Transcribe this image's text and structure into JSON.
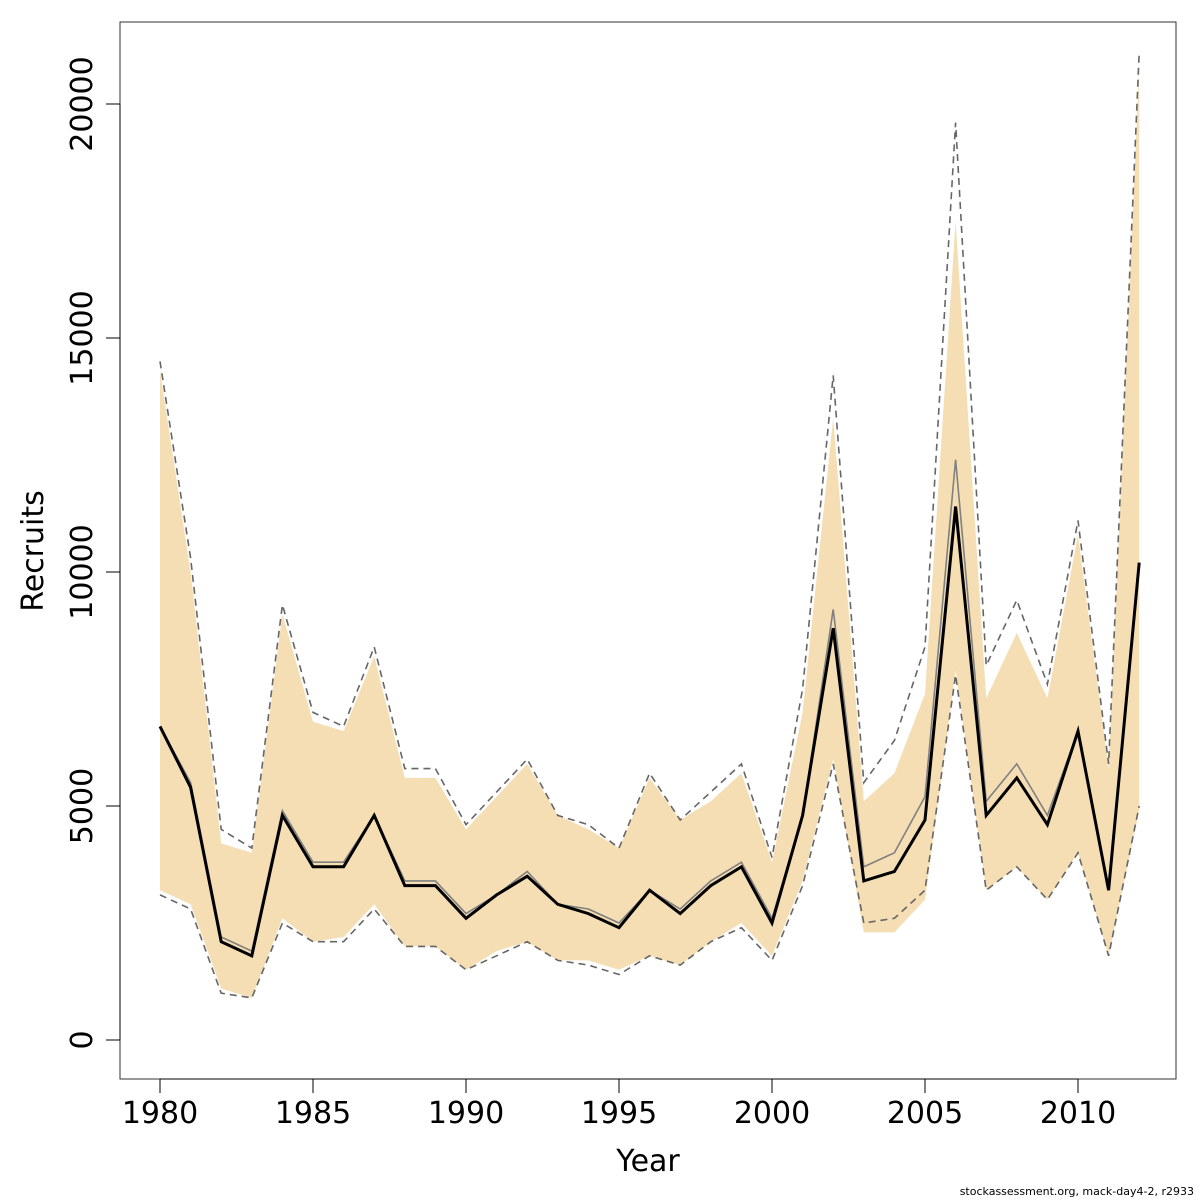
{
  "chart_data": {
    "type": "line",
    "xlabel": "Year",
    "ylabel": "Recruits",
    "xlim": [
      1978.75,
      1913.0
    ],
    "ylim": [
      -850,
      21750
    ],
    "x_ticks": [
      1980,
      1985,
      1990,
      1995,
      2000,
      2005,
      2010
    ],
    "y_ticks": [
      0,
      5000,
      10000,
      15000,
      20000
    ],
    "grid": false,
    "legend": "none",
    "colors": {
      "band": "#f5deb3",
      "central": "#000000",
      "alt_central": "#808080",
      "bounds": "#666666"
    },
    "x": [
      1980,
      1981,
      1982,
      1983,
      1984,
      1985,
      1986,
      1987,
      1988,
      1989,
      1990,
      1991,
      1992,
      1993,
      1994,
      1995,
      1996,
      1997,
      1998,
      1999,
      2000,
      2001,
      2002,
      2003,
      2004,
      2005,
      2006,
      2007,
      2008,
      2009,
      2010,
      2011,
      2012
    ],
    "series": [
      {
        "role": "band_upper",
        "values": [
          14300,
          10000,
          4200,
          4000,
          9100,
          6800,
          6600,
          8200,
          5600,
          5600,
          4500,
          5200,
          5900,
          4800,
          4500,
          4100,
          5600,
          4700,
          5100,
          5700,
          3800,
          7000,
          13300,
          5100,
          5700,
          7400,
          17500,
          7300,
          8700,
          7300,
          10800,
          5800,
          20800
        ]
      },
      {
        "role": "band_lower",
        "values": [
          3200,
          2900,
          1100,
          900,
          2600,
          2100,
          2200,
          2900,
          2000,
          2000,
          1500,
          1900,
          2100,
          1700,
          1700,
          1500,
          1800,
          1600,
          2100,
          2500,
          1800,
          3400,
          6000,
          2300,
          2300,
          3000,
          7900,
          3200,
          3700,
          3000,
          4000,
          1800,
          4900
        ]
      },
      {
        "role": "upper_dashed",
        "values": [
          14500,
          10300,
          4500,
          4100,
          9300,
          7000,
          6700,
          8400,
          5800,
          5800,
          4600,
          5300,
          6000,
          4800,
          4600,
          4100,
          5700,
          4700,
          5300,
          5900,
          3900,
          7500,
          14200,
          5500,
          6400,
          8400,
          19600,
          8000,
          9400,
          7600,
          11100,
          5900,
          21100
        ]
      },
      {
        "role": "lower_dashed",
        "values": [
          3100,
          2800,
          1000,
          900,
          2500,
          2100,
          2100,
          2800,
          2000,
          2000,
          1500,
          1800,
          2100,
          1700,
          1600,
          1400,
          1800,
          1600,
          2100,
          2400,
          1700,
          3300,
          5900,
          2500,
          2600,
          3200,
          7800,
          3200,
          3700,
          3000,
          4000,
          1800,
          5000
        ]
      },
      {
        "role": "central_alt",
        "values": [
          6700,
          5500,
          2200,
          1900,
          4900,
          3800,
          3800,
          4800,
          3400,
          3400,
          2700,
          3100,
          3600,
          2900,
          2800,
          2500,
          3200,
          2800,
          3400,
          3800,
          2600,
          4800,
          9200,
          3700,
          4000,
          5200,
          12400,
          5100,
          5900,
          4800,
          6600,
          3200,
          10200
        ]
      },
      {
        "role": "central",
        "values": [
          6700,
          5400,
          2100,
          1800,
          4800,
          3700,
          3700,
          4800,
          3300,
          3300,
          2600,
          3100,
          3500,
          2900,
          2700,
          2400,
          3200,
          2700,
          3300,
          3700,
          2500,
          4800,
          8800,
          3400,
          3600,
          4700,
          11400,
          4800,
          5600,
          4600,
          6600,
          3200,
          10200
        ]
      }
    ]
  },
  "footer": {
    "source_note": "stockassessment.org, mack-day4-2, r2933"
  }
}
